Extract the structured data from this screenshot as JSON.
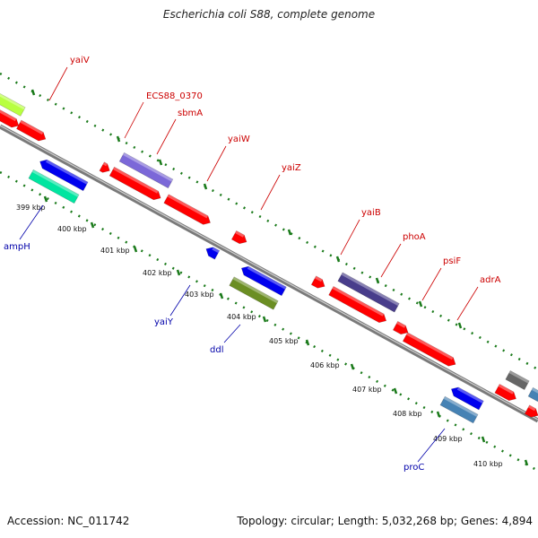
{
  "header": {
    "title": "Escherichia coli S88, complete genome"
  },
  "footer": {
    "accession": "Accession: NC_011742",
    "summary": "Topology: circular; Length: 5,032,268 bp; Genes: 4,894"
  },
  "colors": {
    "backbone": "#8c8c8c",
    "tick": "#1a7a1a",
    "label_forward": "#cc0000",
    "label_reverse": "#0000aa"
  },
  "scale_labels": [
    "399 kbp",
    "400 kbp",
    "401 kbp",
    "402 kbp",
    "403 kbp",
    "404 kbp",
    "405 kbp",
    "406 kbp",
    "407 kbp",
    "408 kbp",
    "409 kbp",
    "410 kbp"
  ],
  "gene_labels_forward": [
    "yaiV",
    "ECS88_0370",
    "sbmA",
    "yaiW",
    "yaiZ",
    "yaiB",
    "phoA",
    "psiF",
    "adrA"
  ],
  "gene_labels_reverse": [
    "ampH",
    "yaiY",
    "ddl",
    "proC"
  ],
  "feature_colors": [
    "#ff0000",
    "#0000ee",
    "#7b68d8",
    "#483d8b",
    "#6b8e23",
    "#00e5a0",
    "#b8ff40",
    "#4682b4",
    "#666666"
  ]
}
